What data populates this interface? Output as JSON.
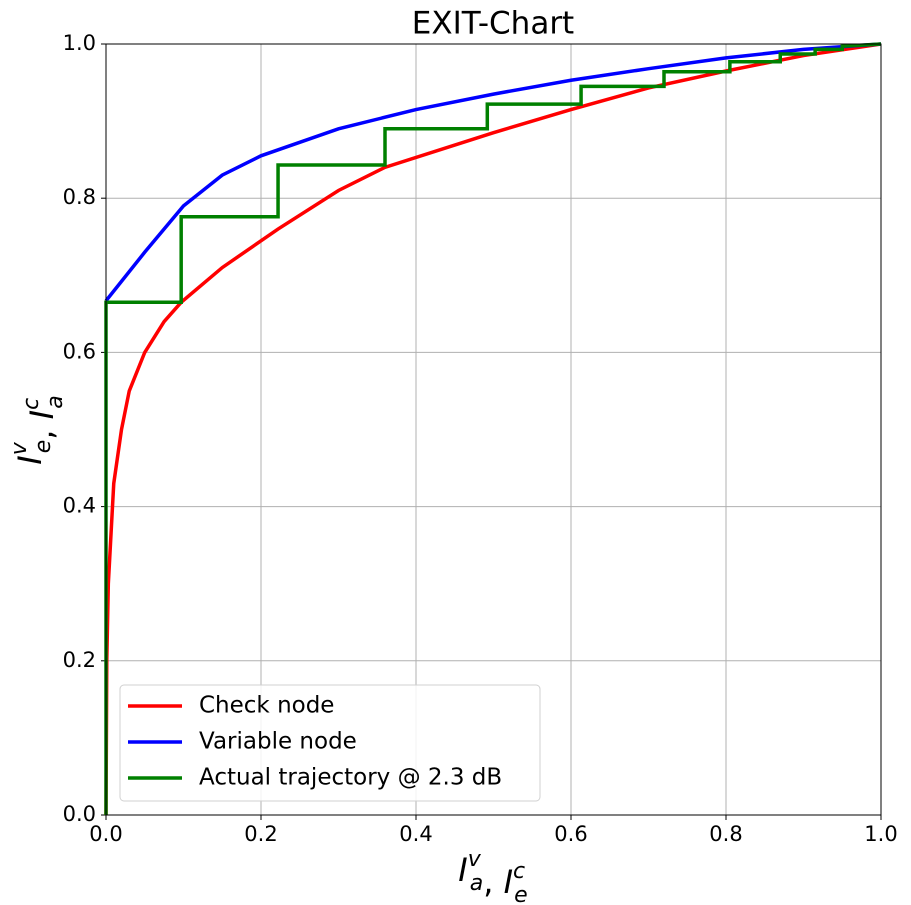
{
  "chart_data": {
    "type": "line",
    "title": "EXIT-Chart",
    "xlabel": {
      "terms": [
        {
          "base": "I",
          "sup": "v",
          "sub": "a"
        },
        {
          "base": "I",
          "sup": "c",
          "sub": "e"
        }
      ],
      "separator": ", "
    },
    "ylabel": {
      "terms": [
        {
          "base": "I",
          "sup": "v",
          "sub": "e"
        },
        {
          "base": "I",
          "sup": "c",
          "sub": "a"
        }
      ],
      "separator": ", "
    },
    "xlim": [
      0,
      1
    ],
    "ylim": [
      0,
      1
    ],
    "xticks": [
      {
        "value": 0,
        "label": "0.0"
      },
      0.2,
      0.4,
      0.6,
      0.8,
      {
        "value": 1,
        "label": "1.0"
      }
    ],
    "yticks": [
      {
        "value": 0,
        "label": "0.0"
      },
      0.2,
      0.4,
      0.6,
      0.8,
      {
        "value": 1,
        "label": "1.0"
      }
    ],
    "grid": true,
    "legend": "lower left",
    "series": [
      {
        "name": "Check node",
        "color": "#ff0000",
        "x": [
          0,
          0.001,
          0.003,
          0.01,
          0.02,
          0.03,
          0.05,
          0.075,
          0.097,
          0.15,
          0.222,
          0.3,
          0.36,
          0.5,
          0.6,
          0.7,
          0.8,
          0.9,
          1
        ],
        "values": [
          0,
          0.2,
          0.3,
          0.43,
          0.5,
          0.55,
          0.6,
          0.64,
          0.665,
          0.71,
          0.76,
          0.81,
          0.84,
          0.885,
          0.915,
          0.943,
          0.965,
          0.985,
          1
        ]
      },
      {
        "name": "Variable node",
        "color": "#0000ff",
        "x": [
          0,
          0.05,
          0.1,
          0.15,
          0.2,
          0.3,
          0.4,
          0.5,
          0.6,
          0.7,
          0.8,
          0.9,
          1
        ],
        "values": [
          0.667,
          0.73,
          0.79,
          0.83,
          0.855,
          0.89,
          0.915,
          0.935,
          0.953,
          0.968,
          0.982,
          0.993,
          1
        ]
      },
      {
        "name": "Actual trajectory @ 2.3 dB",
        "color": "#008000",
        "x": [
          0,
          0,
          0.097,
          0.097,
          0.222,
          0.222,
          0.36,
          0.36,
          0.492,
          0.492,
          0.613,
          0.613,
          0.72,
          0.72,
          0.805,
          0.805,
          0.87,
          0.87,
          0.915,
          0.915,
          0.95,
          0.95,
          1
        ],
        "values": [
          0,
          0.665,
          0.665,
          0.776,
          0.776,
          0.843,
          0.843,
          0.89,
          0.89,
          0.922,
          0.922,
          0.945,
          0.945,
          0.964,
          0.964,
          0.977,
          0.977,
          0.987,
          0.987,
          0.993,
          0.993,
          0.997,
          1
        ]
      }
    ]
  }
}
